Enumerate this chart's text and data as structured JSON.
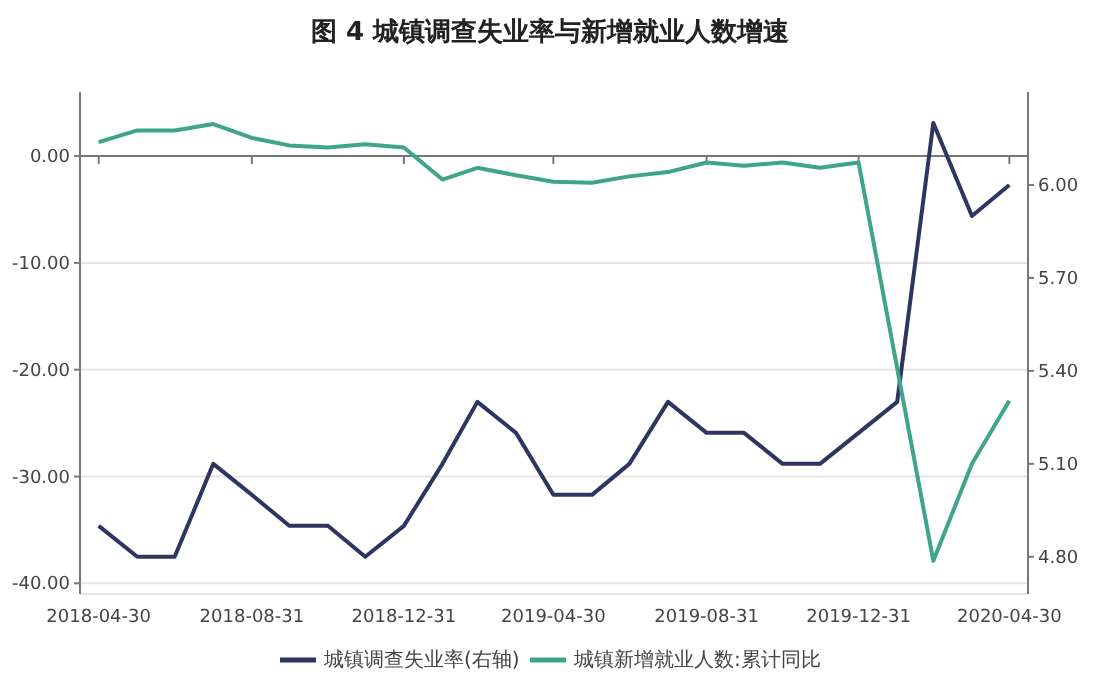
{
  "chart_data": {
    "type": "line",
    "title": "图 4  城镇调查失业率与新增就业人数增速",
    "xlim": [
      "2018-04-15",
      "2020-05-15"
    ],
    "xticks": [
      "2018-04-30",
      "2018-08-31",
      "2018-12-31",
      "2019-04-30",
      "2019-08-31",
      "2019-12-31",
      "2020-04-30"
    ],
    "ylim": [
      -41,
      6
    ],
    "yticks": [
      {
        "value": -40,
        "label": "-40.00"
      },
      {
        "value": -30,
        "label": "-30.00"
      },
      {
        "value": -20,
        "label": "-20.00"
      },
      {
        "value": -10,
        "label": "-10.00"
      },
      {
        "value": 0,
        "label": "0.00"
      }
    ],
    "y2lim": [
      4.68,
      6.3
    ],
    "y2ticks": [
      {
        "value": 4.8,
        "label": "4.80"
      },
      {
        "value": 5.1,
        "label": "5.10"
      },
      {
        "value": 5.4,
        "label": "5.40"
      },
      {
        "value": 5.7,
        "label": "5.70"
      },
      {
        "value": 6.0,
        "label": "6.00"
      }
    ],
    "grid": "y",
    "legend": "bottom",
    "marker": "none",
    "line_style": "solid",
    "series": [
      {
        "name": "城镇调查失业率(右轴)",
        "color": "#2e3560",
        "axis": "y2",
        "x": [
          "2018-04-30",
          "2018-05-31",
          "2018-06-30",
          "2018-07-31",
          "2018-08-31",
          "2018-09-30",
          "2018-10-31",
          "2018-11-30",
          "2018-12-31",
          "2019-01-31",
          "2019-02-28",
          "2019-03-31",
          "2019-04-30",
          "2019-05-31",
          "2019-06-30",
          "2019-07-31",
          "2019-08-31",
          "2019-09-30",
          "2019-10-31",
          "2019-11-30",
          "2019-12-31",
          "2020-01-31",
          "2020-02-29",
          "2020-03-31",
          "2020-04-30"
        ],
        "values": [
          4.9,
          4.8,
          4.8,
          5.1,
          5.0,
          4.9,
          4.9,
          4.8,
          4.9,
          5.1,
          5.3,
          5.2,
          5.0,
          5.0,
          5.1,
          5.3,
          5.2,
          5.2,
          5.1,
          5.1,
          5.2,
          5.3,
          6.2,
          5.9,
          6.0
        ]
      },
      {
        "name": "城镇新增就业人数:累计同比",
        "color": "#3fa58a",
        "x": [
          "2018-04-30",
          "2018-05-31",
          "2018-06-30",
          "2018-07-31",
          "2018-08-31",
          "2018-09-30",
          "2018-10-31",
          "2018-11-30",
          "2018-12-31",
          "2019-01-31",
          "2019-02-28",
          "2019-03-31",
          "2019-04-30",
          "2019-05-31",
          "2019-06-30",
          "2019-07-31",
          "2019-08-31",
          "2019-09-30",
          "2019-10-31",
          "2019-11-30",
          "2019-12-31",
          "2020-02-29",
          "2020-03-31",
          "2020-04-30"
        ],
        "values": [
          1.3,
          2.4,
          2.4,
          3.0,
          1.7,
          1.0,
          0.8,
          1.1,
          0.8,
          -2.2,
          -1.1,
          -1.8,
          -2.4,
          -2.5,
          -1.9,
          -1.5,
          -0.6,
          -0.9,
          -0.6,
          -1.1,
          -0.6,
          -37.9,
          -28.8,
          -22.9
        ]
      }
    ]
  }
}
